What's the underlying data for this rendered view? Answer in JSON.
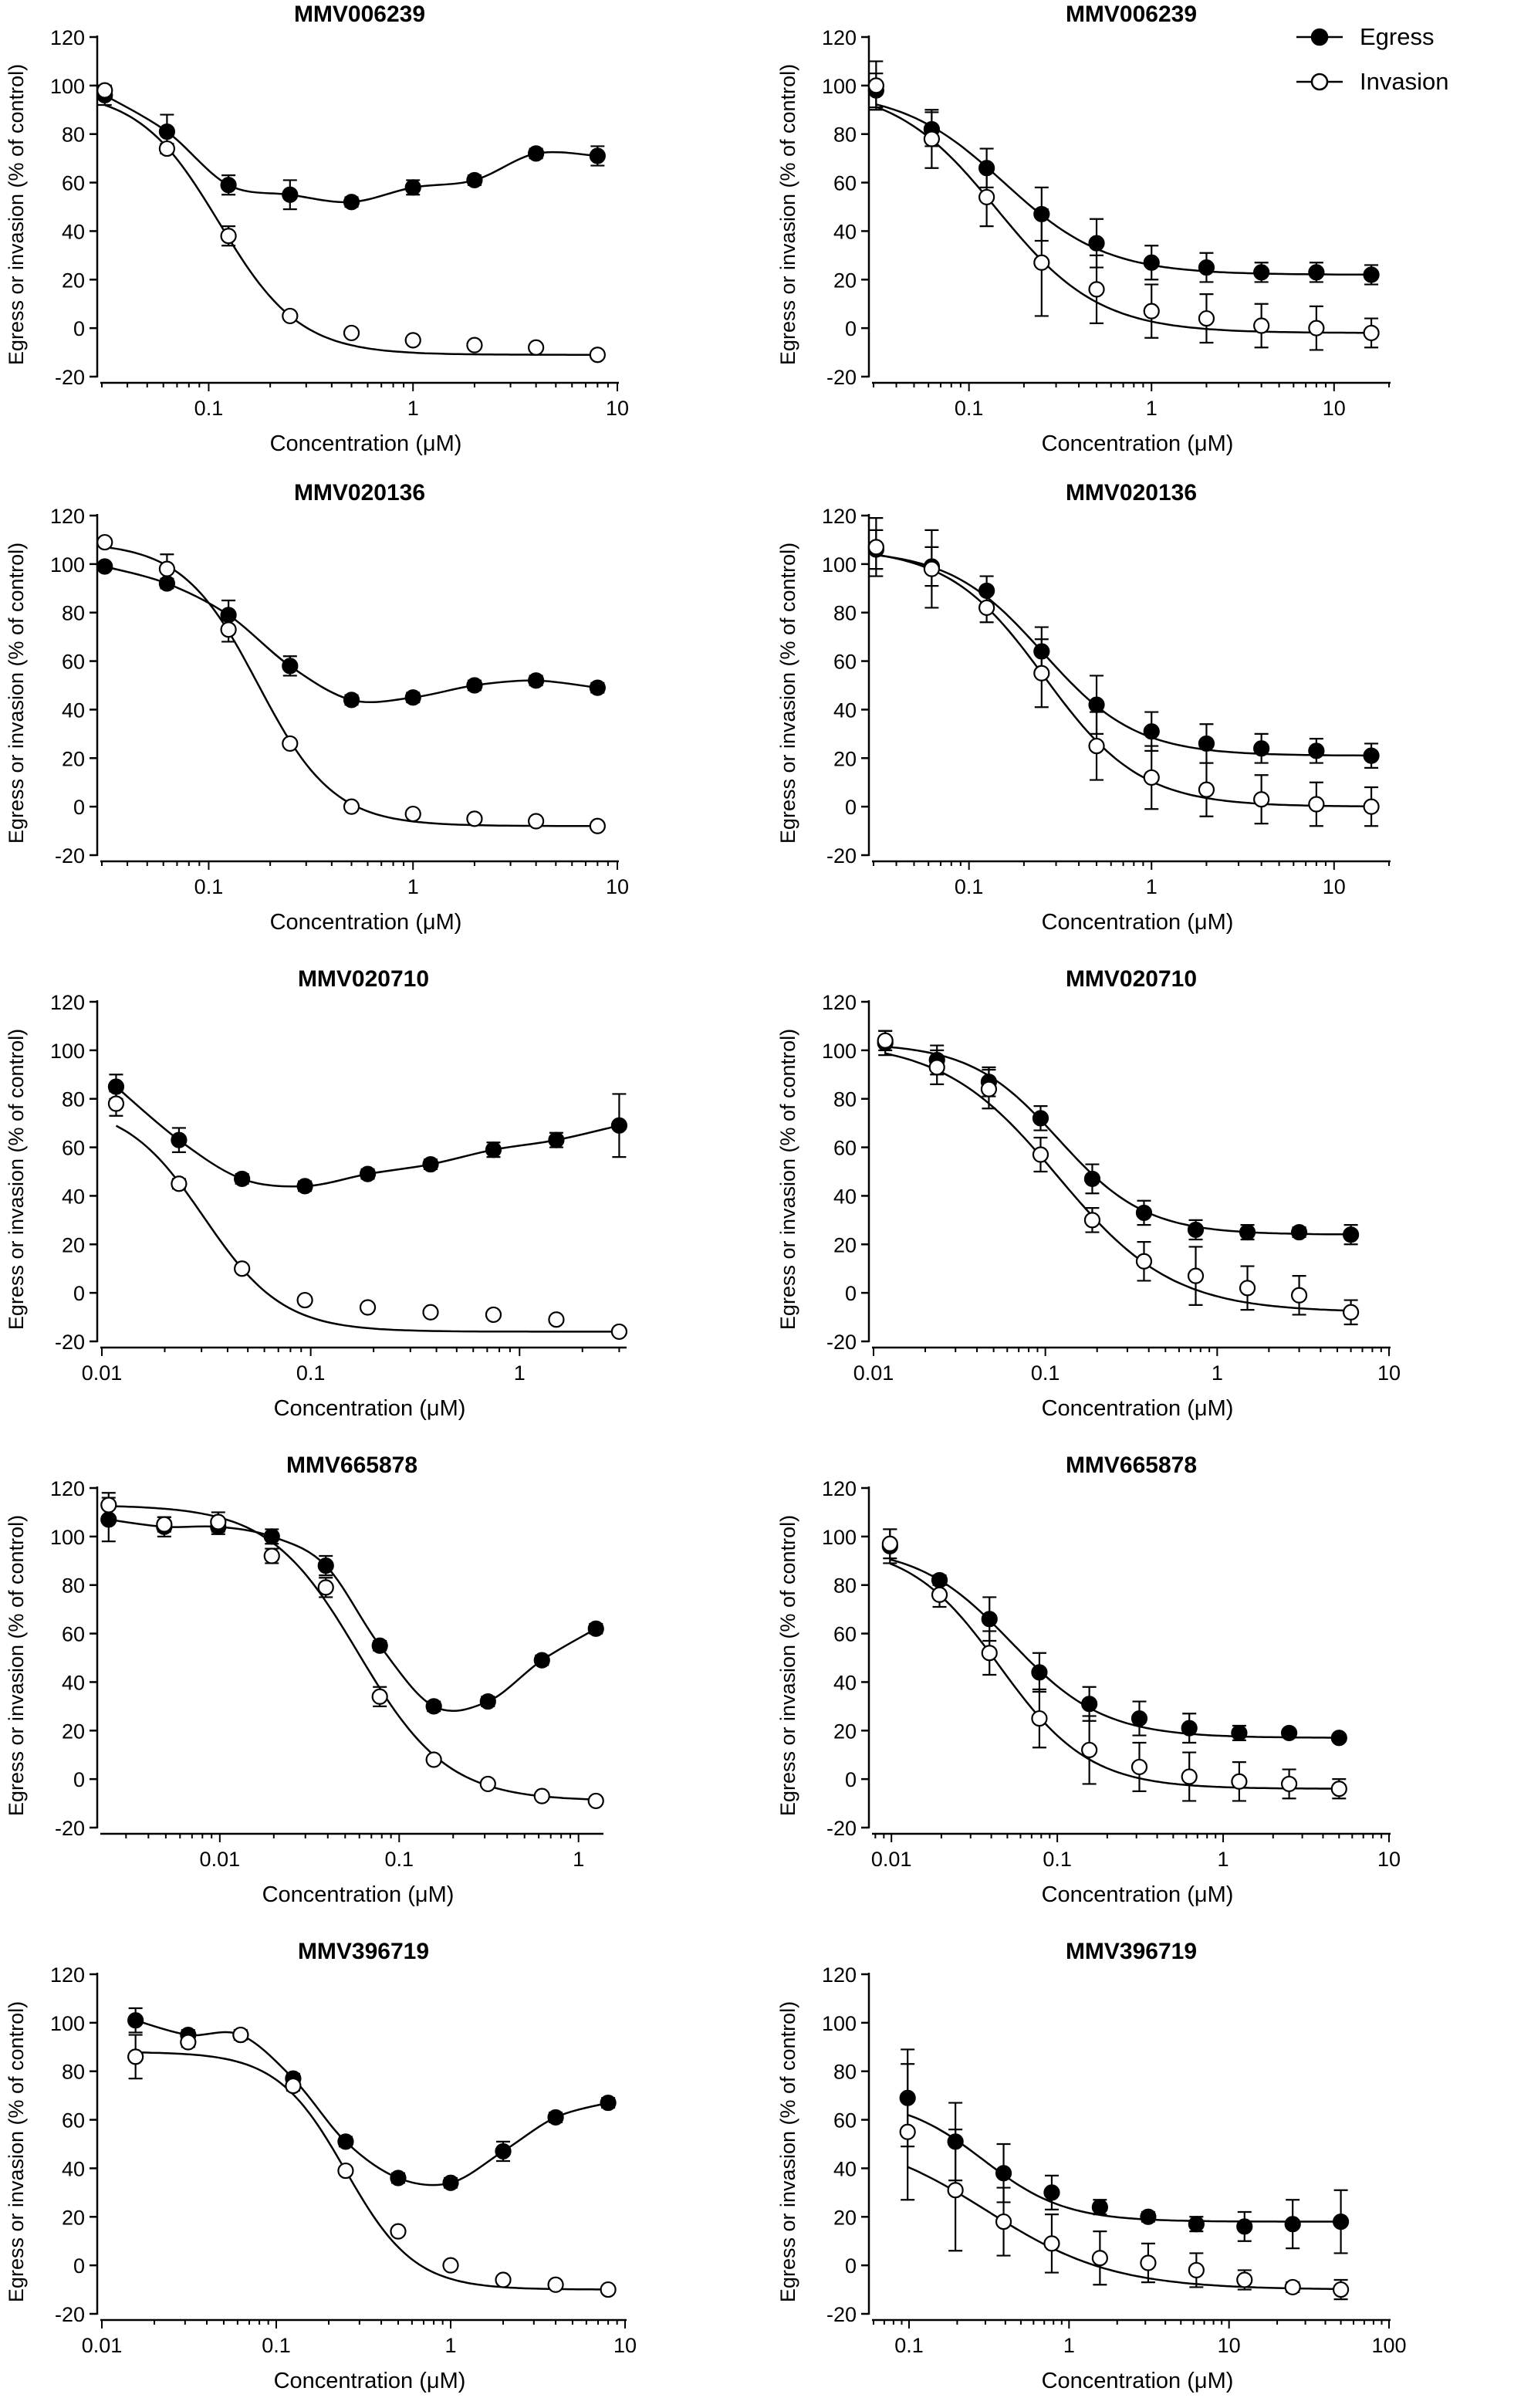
{
  "figure": {
    "legend": [
      {
        "name": "Egress",
        "marker": "filled"
      },
      {
        "name": "Invasion",
        "marker": "open"
      }
    ]
  },
  "chart_data": [
    {
      "type": "scatter",
      "title": "MMV006239",
      "xlabel": "Concentration (μM)",
      "ylabel": "Egress or invasion (% of control)",
      "xscale": "log",
      "xlim": [
        0.03,
        10
      ],
      "xticks": [
        0.1,
        1,
        10
      ],
      "xtick_labels": [
        "0.1",
        "1",
        "10"
      ],
      "ylim": [
        -20,
        120
      ],
      "yticks": [
        -20,
        0,
        20,
        40,
        60,
        80,
        100,
        120
      ],
      "series": [
        {
          "name": "Egress",
          "marker": "filled",
          "x": [
            0.031,
            0.0625,
            0.125,
            0.25,
            0.5,
            1,
            2,
            4,
            8
          ],
          "y": [
            96,
            81,
            59,
            55,
            52,
            58,
            61,
            72,
            71
          ],
          "err": [
            4,
            7,
            4,
            6,
            2,
            3,
            2,
            2,
            4
          ],
          "curve": "connect"
        },
        {
          "name": "Invasion",
          "marker": "open",
          "x": [
            0.031,
            0.0625,
            0.125,
            0.25,
            0.5,
            1,
            2,
            4,
            8
          ],
          "y": [
            98,
            74,
            38,
            5,
            -2,
            -5,
            -7,
            -8,
            -11
          ],
          "err": [
            2,
            2,
            4,
            1,
            1,
            1,
            1,
            1,
            1
          ],
          "curve": "fit"
        }
      ]
    },
    {
      "type": "scatter",
      "title": "MMV006239",
      "xlabel": "Concentration (μM)",
      "ylabel": "Egress or invasion (% of control)",
      "xscale": "log",
      "xlim": [
        0.03,
        20
      ],
      "xticks": [
        0.1,
        1,
        10
      ],
      "xtick_labels": [
        "0.1",
        "1",
        "10"
      ],
      "ylim": [
        -20,
        120
      ],
      "yticks": [
        -20,
        0,
        20,
        40,
        60,
        80,
        100,
        120
      ],
      "series": [
        {
          "name": "Egress",
          "marker": "filled",
          "x": [
            0.031,
            0.0625,
            0.125,
            0.25,
            0.5,
            1,
            2,
            4,
            8,
            16
          ],
          "y": [
            98,
            82,
            66,
            47,
            35,
            27,
            25,
            23,
            23,
            22
          ],
          "err": [
            7,
            7,
            8,
            11,
            10,
            7,
            6,
            4,
            4,
            4
          ],
          "curve": "fit"
        },
        {
          "name": "Invasion",
          "marker": "open",
          "x": [
            0.031,
            0.0625,
            0.125,
            0.25,
            0.5,
            1,
            2,
            4,
            8,
            16
          ],
          "y": [
            100,
            78,
            54,
            27,
            16,
            7,
            4,
            1,
            0,
            -2
          ],
          "err": [
            10,
            12,
            12,
            22,
            14,
            11,
            10,
            9,
            9,
            6
          ],
          "curve": "fit"
        }
      ]
    },
    {
      "type": "scatter",
      "title": "MMV020136",
      "xlabel": "Concentration (μM)",
      "ylabel": "Egress or invasion (% of control)",
      "xscale": "log",
      "xlim": [
        0.03,
        10
      ],
      "xticks": [
        0.1,
        1,
        10
      ],
      "xtick_labels": [
        "0.1",
        "1",
        "10"
      ],
      "ylim": [
        -20,
        120
      ],
      "yticks": [
        -20,
        0,
        20,
        40,
        60,
        80,
        100,
        120
      ],
      "series": [
        {
          "name": "Egress",
          "marker": "filled",
          "x": [
            0.031,
            0.0625,
            0.125,
            0.25,
            0.5,
            1,
            2,
            4,
            8
          ],
          "y": [
            99,
            92,
            79,
            58,
            44,
            45,
            50,
            52,
            49
          ],
          "err": [
            1,
            2,
            6,
            4,
            2,
            2,
            2,
            2,
            2
          ],
          "curve": "connect"
        },
        {
          "name": "Invasion",
          "marker": "open",
          "x": [
            0.031,
            0.0625,
            0.125,
            0.25,
            0.5,
            1,
            2,
            4,
            8
          ],
          "y": [
            109,
            98,
            73,
            26,
            0,
            -3,
            -5,
            -6,
            -8
          ],
          "err": [
            1,
            6,
            5,
            1,
            1,
            1,
            1,
            1,
            1
          ],
          "curve": "fit"
        }
      ]
    },
    {
      "type": "scatter",
      "title": "MMV020136",
      "xlabel": "Concentration (μM)",
      "ylabel": "Egress or invasion (% of control)",
      "xscale": "log",
      "xlim": [
        0.03,
        20
      ],
      "xticks": [
        0.1,
        1,
        10
      ],
      "xtick_labels": [
        "0.1",
        "1",
        "10"
      ],
      "ylim": [
        -20,
        120
      ],
      "yticks": [
        -20,
        0,
        20,
        40,
        60,
        80,
        100,
        120
      ],
      "series": [
        {
          "name": "Egress",
          "marker": "filled",
          "x": [
            0.031,
            0.0625,
            0.125,
            0.25,
            0.5,
            1,
            2,
            4,
            8,
            16
          ],
          "y": [
            106,
            99,
            89,
            64,
            42,
            31,
            26,
            24,
            23,
            21
          ],
          "err": [
            8,
            8,
            6,
            10,
            12,
            8,
            8,
            6,
            5,
            5
          ],
          "curve": "fit"
        },
        {
          "name": "Invasion",
          "marker": "open",
          "x": [
            0.031,
            0.0625,
            0.125,
            0.25,
            0.5,
            1,
            2,
            4,
            8,
            16
          ],
          "y": [
            107,
            98,
            82,
            55,
            25,
            12,
            7,
            3,
            1,
            0
          ],
          "err": [
            12,
            16,
            6,
            14,
            14,
            13,
            11,
            10,
            9,
            8
          ],
          "curve": "fit"
        }
      ]
    },
    {
      "type": "scatter",
      "title": "MMV020710",
      "xlabel": "Concentration (μM)",
      "ylabel": "Egress or invasion (% of control)",
      "xscale": "log",
      "xlim": [
        0.01,
        3.2
      ],
      "xticks": [
        0.01,
        0.1,
        1
      ],
      "xtick_labels": [
        "0.01",
        "0.1",
        "1"
      ],
      "ylim": [
        -20,
        120
      ],
      "yticks": [
        -20,
        0,
        20,
        40,
        60,
        80,
        100,
        120
      ],
      "series": [
        {
          "name": "Egress",
          "marker": "filled",
          "x": [
            0.0117,
            0.0234,
            0.0469,
            0.0938,
            0.1875,
            0.375,
            0.75,
            1.5,
            3
          ],
          "y": [
            85,
            63,
            47,
            44,
            49,
            53,
            59,
            63,
            69
          ],
          "err": [
            5,
            5,
            2,
            2,
            2,
            2,
            3,
            3,
            13
          ],
          "curve": "connect"
        },
        {
          "name": "Invasion",
          "marker": "open",
          "x": [
            0.0117,
            0.0234,
            0.0469,
            0.0938,
            0.1875,
            0.375,
            0.75,
            1.5,
            3
          ],
          "y": [
            78,
            45,
            10,
            -3,
            -6,
            -8,
            -9,
            -11,
            -16
          ],
          "err": [
            5,
            2,
            1,
            1,
            1,
            1,
            1,
            1,
            1
          ],
          "curve": "fit"
        }
      ]
    },
    {
      "type": "scatter",
      "title": "MMV020710",
      "xlabel": "Concentration (μM)",
      "ylabel": "Egress or invasion (% of control)",
      "xscale": "log",
      "xlim": [
        0.01,
        10
      ],
      "xticks": [
        0.01,
        0.1,
        1,
        10
      ],
      "xtick_labels": [
        "0.01",
        "0.1",
        "1",
        "10"
      ],
      "ylim": [
        -20,
        120
      ],
      "yticks": [
        -20,
        0,
        20,
        40,
        60,
        80,
        100,
        120
      ],
      "series": [
        {
          "name": "Egress",
          "marker": "filled",
          "x": [
            0.0117,
            0.0234,
            0.0469,
            0.0938,
            0.1875,
            0.375,
            0.75,
            1.5,
            3,
            6
          ],
          "y": [
            103,
            96,
            87,
            72,
            47,
            33,
            26,
            25,
            25,
            24
          ],
          "err": [
            5,
            6,
            6,
            5,
            6,
            5,
            4,
            3,
            2,
            4
          ],
          "curve": "fit"
        },
        {
          "name": "Invasion",
          "marker": "open",
          "x": [
            0.0117,
            0.0234,
            0.0469,
            0.0938,
            0.1875,
            0.375,
            0.75,
            1.5,
            3,
            6
          ],
          "y": [
            104,
            93,
            84,
            57,
            30,
            13,
            7,
            2,
            -1,
            -8
          ],
          "err": [
            4,
            7,
            8,
            7,
            5,
            8,
            12,
            9,
            8,
            5
          ],
          "curve": "fit"
        }
      ]
    },
    {
      "type": "scatter",
      "title": "MMV665878",
      "xlabel": "Concentration (μM)",
      "ylabel": "Egress or invasion (% of control)",
      "xscale": "log",
      "xlim": [
        0.0022,
        1.35
      ],
      "xticks": [
        0.01,
        0.1,
        1
      ],
      "xtick_labels": [
        "0.01",
        "0.1",
        "1"
      ],
      "ylim": [
        -20,
        120
      ],
      "yticks": [
        -20,
        0,
        20,
        40,
        60,
        80,
        100,
        120
      ],
      "series": [
        {
          "name": "Egress",
          "marker": "filled",
          "x": [
            0.0024,
            0.0049,
            0.0098,
            0.0195,
            0.039,
            0.078,
            0.156,
            0.3125,
            0.625,
            1.25
          ],
          "y": [
            107,
            104,
            104,
            100,
            88,
            55,
            30,
            32,
            49,
            62
          ],
          "err": [
            9,
            4,
            3,
            3,
            4,
            2,
            2,
            2,
            2,
            2
          ],
          "curve": "connect"
        },
        {
          "name": "Invasion",
          "marker": "open",
          "x": [
            0.0024,
            0.0049,
            0.0098,
            0.0195,
            0.039,
            0.078,
            0.156,
            0.3125,
            0.625,
            1.25
          ],
          "y": [
            113,
            105,
            106,
            92,
            79,
            34,
            8,
            -2,
            -7,
            -9
          ],
          "err": [
            5,
            3,
            4,
            3,
            4,
            4,
            1,
            1,
            1,
            1
          ],
          "curve": "fit"
        }
      ]
    },
    {
      "type": "scatter",
      "title": "MMV665878",
      "xlabel": "Concentration (μM)",
      "ylabel": "Egress or invasion (% of control)",
      "xscale": "log",
      "xlim": [
        0.0078,
        10
      ],
      "xticks": [
        0.01,
        0.1,
        1,
        10
      ],
      "xtick_labels": [
        "0.01",
        "0.1",
        "1",
        "10"
      ],
      "ylim": [
        -20,
        120
      ],
      "yticks": [
        -20,
        0,
        20,
        40,
        60,
        80,
        100,
        120
      ],
      "series": [
        {
          "name": "Egress",
          "marker": "filled",
          "x": [
            0.0098,
            0.0195,
            0.039,
            0.078,
            0.156,
            0.3125,
            0.625,
            1.25,
            2.5,
            5
          ],
          "y": [
            96,
            82,
            66,
            44,
            31,
            25,
            21,
            19,
            19,
            17
          ],
          "err": [
            7,
            2,
            9,
            8,
            7,
            7,
            6,
            3,
            1,
            1
          ],
          "curve": "fit"
        },
        {
          "name": "Invasion",
          "marker": "open",
          "x": [
            0.0098,
            0.0195,
            0.039,
            0.078,
            0.156,
            0.3125,
            0.625,
            1.25,
            2.5,
            5
          ],
          "y": [
            97,
            76,
            52,
            25,
            12,
            5,
            1,
            -1,
            -2,
            -4
          ],
          "err": [
            6,
            5,
            9,
            12,
            14,
            10,
            10,
            8,
            6,
            4
          ],
          "curve": "fit"
        }
      ]
    },
    {
      "type": "scatter",
      "title": "MMV396719",
      "xlabel": "Concentration (μM)",
      "ylabel": "Egress or invasion (% of control)",
      "xscale": "log",
      "xlim": [
        0.01,
        10
      ],
      "xticks": [
        0.01,
        0.1,
        1,
        10
      ],
      "xtick_labels": [
        "0.01",
        "0.1",
        "1",
        "10"
      ],
      "ylim": [
        -20,
        120
      ],
      "yticks": [
        -20,
        0,
        20,
        40,
        60,
        80,
        100,
        120
      ],
      "series": [
        {
          "name": "Egress",
          "marker": "filled",
          "x": [
            0.0156,
            0.03125,
            0.0625,
            0.125,
            0.25,
            0.5,
            1,
            2,
            4,
            8
          ],
          "y": [
            101,
            95,
            95,
            77,
            51,
            36,
            34,
            47,
            61,
            67
          ],
          "err": [
            5,
            2,
            2,
            2,
            2,
            2,
            2,
            4,
            2,
            2
          ],
          "curve": "connect"
        },
        {
          "name": "Invasion",
          "marker": "open",
          "x": [
            0.0156,
            0.03125,
            0.0625,
            0.125,
            0.25,
            0.5,
            1,
            2,
            4,
            8
          ],
          "y": [
            86,
            92,
            95,
            74,
            39,
            14,
            0,
            -6,
            -8,
            -10
          ],
          "err": [
            9,
            2,
            1,
            2,
            1,
            1,
            1,
            1,
            1,
            1
          ],
          "curve": "fit"
        }
      ]
    },
    {
      "type": "scatter",
      "title": "MMV396719",
      "xlabel": "Concentration (μM)",
      "ylabel": "Egress or invasion (% of control)",
      "xscale": "log",
      "xlim": [
        0.06,
        100
      ],
      "xticks": [
        0.1,
        1,
        10,
        100
      ],
      "xtick_labels": [
        "0.1",
        "1",
        "10",
        "100"
      ],
      "ylim": [
        -20,
        120
      ],
      "yticks": [
        -20,
        0,
        20,
        40,
        60,
        80,
        100,
        120
      ],
      "series": [
        {
          "name": "Egress",
          "marker": "filled",
          "x": [
            0.098,
            0.195,
            0.39,
            0.78,
            1.56,
            3.125,
            6.25,
            12.5,
            25,
            50
          ],
          "y": [
            69,
            51,
            38,
            30,
            24,
            20,
            17,
            16,
            17,
            18
          ],
          "err": [
            20,
            16,
            12,
            7,
            3,
            2,
            3,
            6,
            10,
            13
          ],
          "curve": "fit"
        },
        {
          "name": "Invasion",
          "marker": "open",
          "x": [
            0.098,
            0.195,
            0.39,
            0.78,
            1.56,
            3.125,
            6.25,
            12.5,
            25,
            50
          ],
          "y": [
            55,
            31,
            18,
            9,
            3,
            1,
            -2,
            -6,
            -9,
            -10
          ],
          "err": [
            28,
            25,
            14,
            12,
            11,
            8,
            7,
            4,
            2,
            4
          ],
          "curve": "fit"
        }
      ]
    }
  ]
}
